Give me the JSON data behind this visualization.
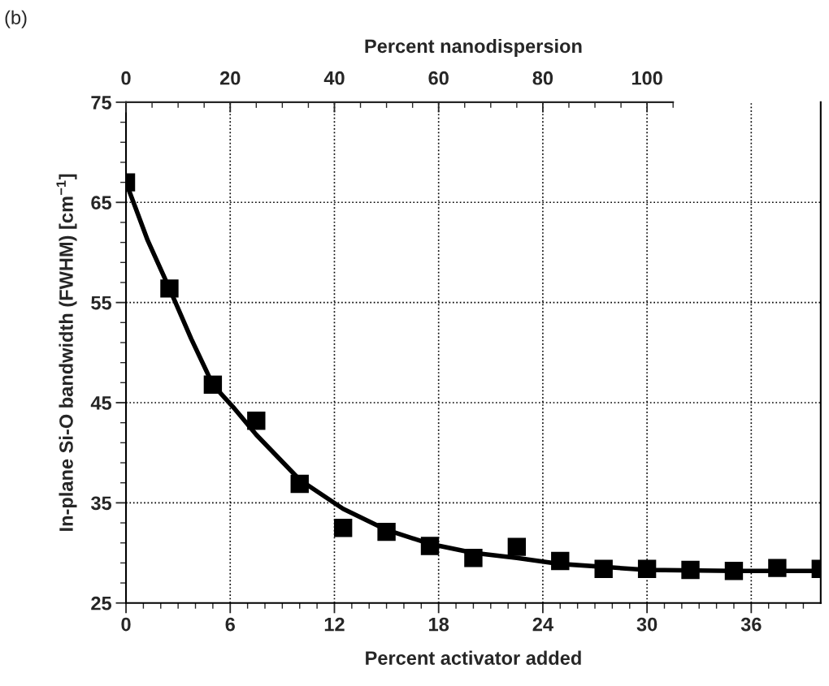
{
  "chart_data": {
    "type": "scatter",
    "xlabel": "Percent activator added",
    "ylabel": "In-plane Si-O bandwidth (FWHM) [cm$^{−1}$]",
    "x2label": "Percent nanodispersion",
    "annotations": [
      "(b)"
    ],
    "xlim": [
      0,
      40
    ],
    "xticks": [
      0,
      {
        "value": 1,
        "label": null
      },
      {
        "value": 2,
        "label": null
      },
      {
        "value": 3,
        "label": null
      },
      {
        "value": 4,
        "label": null
      },
      {
        "value": 5,
        "label": null
      },
      6,
      {
        "value": 7,
        "label": null
      },
      {
        "value": 8,
        "label": null
      },
      {
        "value": 9,
        "label": null
      },
      {
        "value": 10,
        "label": null
      },
      {
        "value": 11,
        "label": null
      },
      12,
      {
        "value": 13,
        "label": null
      },
      {
        "value": 14,
        "label": null
      },
      {
        "value": 15,
        "label": null
      },
      {
        "value": 16,
        "label": null
      },
      {
        "value": 17,
        "label": null
      },
      18,
      {
        "value": 19,
        "label": null
      },
      {
        "value": 20,
        "label": null
      },
      {
        "value": 21,
        "label": null
      },
      {
        "value": 22,
        "label": null
      },
      {
        "value": 23,
        "label": null
      },
      24,
      {
        "value": 25,
        "label": null
      },
      {
        "value": 26,
        "label": null
      },
      {
        "value": 27,
        "label": null
      },
      {
        "value": 28,
        "label": null
      },
      {
        "value": 29,
        "label": null
      },
      30,
      {
        "value": 31,
        "label": null
      },
      {
        "value": 32,
        "label": null
      },
      {
        "value": 33,
        "label": null
      },
      {
        "value": 34,
        "label": null
      },
      {
        "value": 35,
        "label": null
      },
      36,
      {
        "value": 37,
        "label": null
      },
      {
        "value": 38,
        "label": null
      },
      {
        "value": 39,
        "label": null
      }
    ],
    "ylim": [
      25,
      75
    ],
    "yticks": [
      25,
      {
        "value": 27,
        "label": null
      },
      {
        "value": 29,
        "label": null
      },
      {
        "value": 31,
        "label": null
      },
      {
        "value": 33,
        "label": null
      },
      35,
      {
        "value": 37,
        "label": null
      },
      {
        "value": 39,
        "label": null
      },
      {
        "value": 41,
        "label": null
      },
      {
        "value": 43,
        "label": null
      },
      45,
      {
        "value": 47,
        "label": null
      },
      {
        "value": 49,
        "label": null
      },
      {
        "value": 51,
        "label": null
      },
      {
        "value": 53,
        "label": null
      },
      55,
      {
        "value": 57,
        "label": null
      },
      {
        "value": 59,
        "label": null
      },
      {
        "value": 61,
        "label": null
      },
      {
        "value": 63,
        "label": null
      },
      65,
      {
        "value": 67,
        "label": null
      },
      {
        "value": 69,
        "label": null
      },
      {
        "value": 71,
        "label": null
      },
      {
        "value": 73,
        "label": null
      },
      75
    ],
    "x2lim": [
      0,
      133.33
    ],
    "x2ticks": [
      0,
      {
        "value": 5,
        "label": null
      },
      {
        "value": 10,
        "label": null
      },
      {
        "value": 15,
        "label": null
      },
      20,
      {
        "value": 25,
        "label": null
      },
      {
        "value": 30,
        "label": null
      },
      {
        "value": 35,
        "label": null
      },
      40,
      {
        "value": 45,
        "label": null
      },
      {
        "value": 50,
        "label": null
      },
      {
        "value": 55,
        "label": null
      },
      60,
      {
        "value": 65,
        "label": null
      },
      {
        "value": 70,
        "label": null
      },
      {
        "value": 75,
        "label": null
      },
      80,
      {
        "value": 85,
        "label": null
      },
      {
        "value": 90,
        "label": null
      },
      {
        "value": 95,
        "label": null
      },
      100,
      {
        "value": 105,
        "label": null
      }
    ],
    "grid": true,
    "series": [
      {
        "marker": "square",
        "color": "#000000",
        "x": [
          0,
          2.5,
          5,
          7.5,
          10,
          12.5,
          15,
          17.5,
          20,
          22.5,
          25,
          27.5,
          30,
          32.5,
          35,
          37.5,
          40
        ],
        "values": [
          67.0,
          56.4,
          46.8,
          43.2,
          36.9,
          32.5,
          32.1,
          30.7,
          29.5,
          30.6,
          29.2,
          28.4,
          28.4,
          28.3,
          28.2,
          28.5,
          28.4
        ]
      },
      {
        "type": "line",
        "marker": "none",
        "color": "#000000",
        "line_style": "solid",
        "x": [
          0,
          1.25,
          2.5,
          3.75,
          5,
          6.25,
          7.5,
          10,
          12.5,
          15,
          17.5,
          20,
          22.5,
          25,
          27.5,
          30,
          35,
          40
        ],
        "values": [
          67.0,
          61.2,
          56.4,
          51.4,
          46.8,
          44.4,
          41.8,
          37.3,
          34.4,
          32.3,
          30.9,
          30.0,
          29.5,
          28.9,
          28.6,
          28.3,
          28.2,
          28.2
        ]
      }
    ]
  }
}
